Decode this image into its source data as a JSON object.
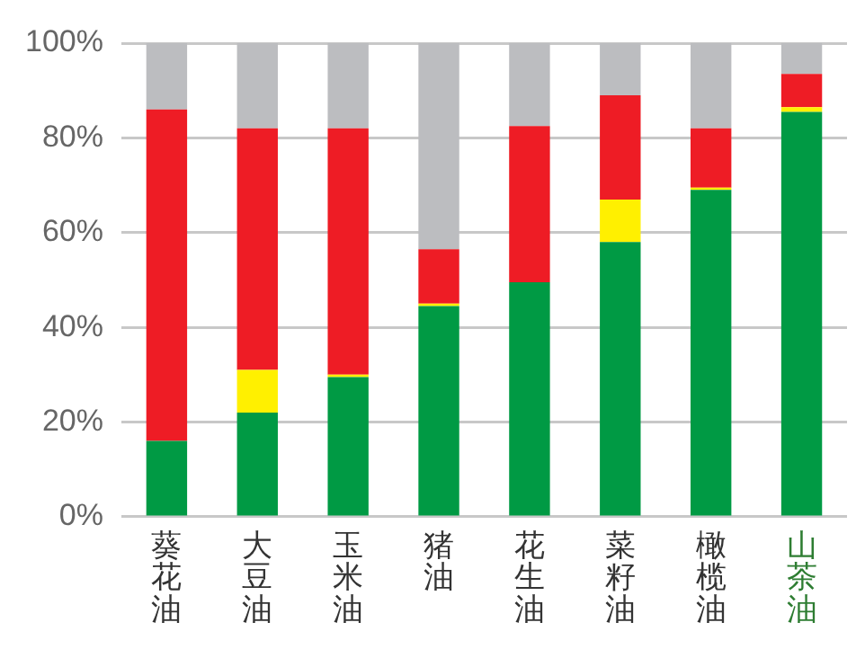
{
  "chart_data": {
    "type": "bar",
    "stacked": true,
    "categories": [
      "葵花油",
      "大豆油",
      "玉米油",
      "猪油",
      "花生油",
      "菜籽油",
      "橄榄油",
      "山茶油"
    ],
    "series": [
      {
        "color": "#009a44",
        "values": [
          16,
          22,
          29.5,
          44.5,
          49.5,
          58,
          69,
          85.5
        ]
      },
      {
        "color": "#fff000",
        "values": [
          0,
          9,
          0.5,
          0.5,
          0,
          9,
          0.5,
          1
        ]
      },
      {
        "color": "#ee1c25",
        "values": [
          70,
          51,
          52,
          11.5,
          33,
          22,
          12.5,
          7
        ]
      },
      {
        "color": "#bcbdc0",
        "values": [
          14,
          18,
          18,
          43.5,
          17.5,
          11,
          18,
          6.5
        ]
      }
    ],
    "ylim": [
      0,
      100
    ],
    "yticks": [
      {
        "value": 0,
        "label": "0%"
      },
      {
        "value": 20,
        "label": "20%"
      },
      {
        "value": 40,
        "label": "40%"
      },
      {
        "value": 60,
        "label": "60%"
      },
      {
        "value": 80,
        "label": "80%"
      },
      {
        "value": 100,
        "label": "100%"
      }
    ],
    "grid": "y",
    "legend": false
  }
}
